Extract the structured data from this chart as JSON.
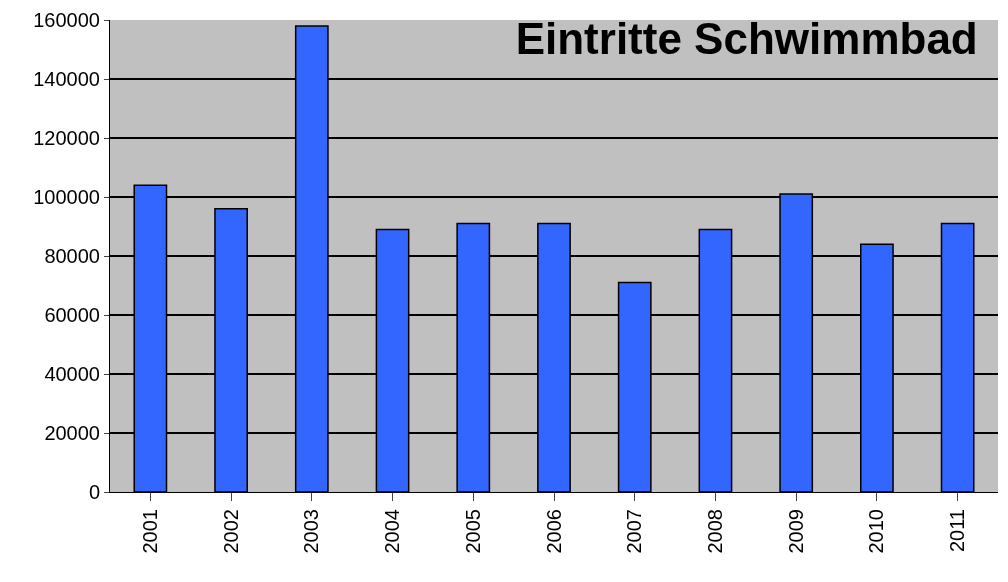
{
  "chart_data": {
    "type": "bar",
    "title": "Eintritte Schwimmbad",
    "categories": [
      "2001",
      "2002",
      "2003",
      "2004",
      "2005",
      "2006",
      "2007",
      "2008",
      "2009",
      "2010",
      "2011"
    ],
    "values": [
      104000,
      96000,
      158000,
      89000,
      91000,
      91000,
      71000,
      89000,
      101000,
      84000,
      91000
    ],
    "color": "#3366ff",
    "ylim": [
      0,
      160000
    ],
    "yticks": [
      0,
      20000,
      40000,
      60000,
      80000,
      100000,
      120000,
      140000,
      160000
    ],
    "grid": true,
    "legend": false
  }
}
